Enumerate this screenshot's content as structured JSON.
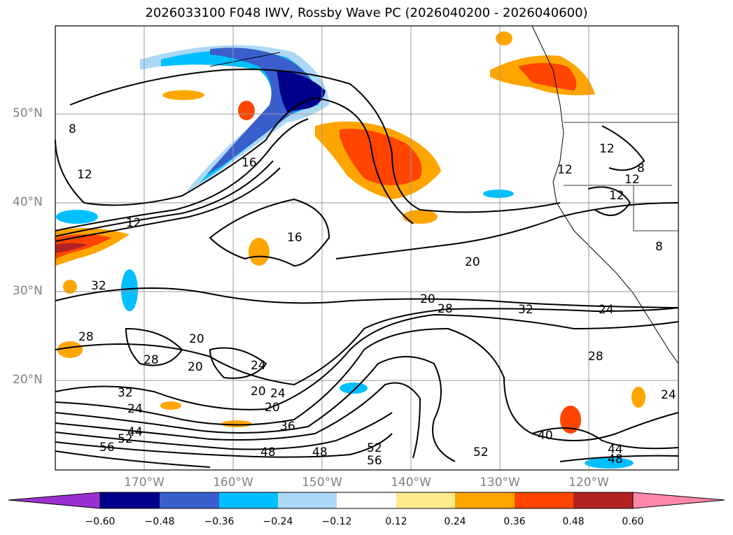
{
  "title": "2026033100 F048 IWV, Rossby Wave PC (2026040200 - 2026040600)",
  "map": {
    "extent": {
      "lon_min": -180,
      "lon_max": -110,
      "lat_min": 10,
      "lat_max": 60
    },
    "lat_labels": [
      "50°N",
      "40°N",
      "30°N",
      "20°N"
    ],
    "lon_labels": [
      "170°W",
      "160°W",
      "150°W",
      "140°W",
      "130°W",
      "120°W"
    ],
    "contour_labels": [
      "8",
      "12",
      "12",
      "16",
      "16",
      "12",
      "32",
      "28",
      "28",
      "20",
      "20",
      "24",
      "20",
      "20",
      "20",
      "28",
      "32",
      "24",
      "32",
      "24",
      "28",
      "36",
      "48",
      "48",
      "52",
      "56",
      "52",
      "56",
      "44",
      "52",
      "40",
      "44",
      "48",
      "24",
      "12",
      "8",
      "12",
      "8",
      "12",
      "20",
      "24"
    ]
  },
  "colorbar": {
    "ticks": [
      "−0.60",
      "−0.48",
      "−0.36",
      "−0.24",
      "−0.12",
      "0.12",
      "0.24",
      "0.36",
      "0.48",
      "0.60"
    ],
    "colors": [
      "#9b30d0",
      "#00008b",
      "#3a5fcd",
      "#00bfff",
      "#add8f5",
      "#ffffff",
      "#ffeb8c",
      "#ffa500",
      "#ff4500",
      "#b22222",
      "#ff88aa"
    ]
  }
}
